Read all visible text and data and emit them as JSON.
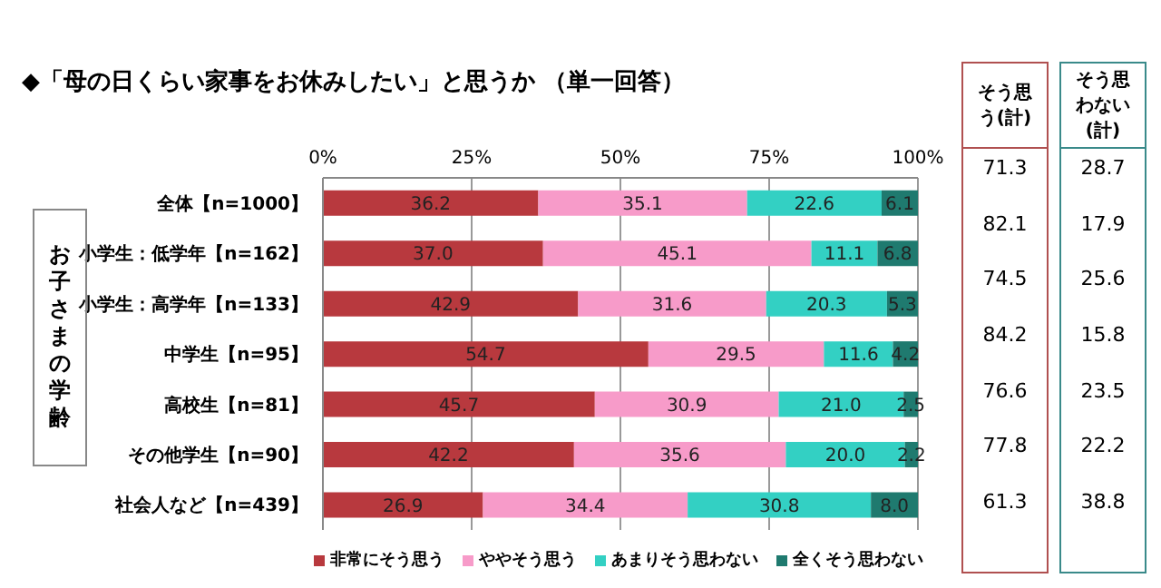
{
  "chart_data": {
    "type": "bar",
    "orientation": "horizontal",
    "stacked": true,
    "title": "◆「母の日くらい家事をお休みしたい」と思うか （単一回答）",
    "categories": [
      "全体【n=1000】",
      "小学生：低学年【n=162】",
      "小学生：高学年【n=133】",
      "中学生【n=95】",
      "高校生【n=81】",
      "その他学生【n=90】",
      "社会人など【n=439】"
    ],
    "series": [
      {
        "name": "非常にそう思う",
        "color": "#b8393e",
        "values": [
          36.2,
          37.0,
          42.9,
          54.7,
          45.7,
          42.2,
          26.9
        ],
        "value_labels": [
          "36.2",
          "37.0",
          "42.9",
          "54.7",
          "45.7",
          "42.2",
          "26.9"
        ]
      },
      {
        "name": "ややそう思う",
        "color": "#f79bc9",
        "values": [
          35.1,
          45.1,
          31.6,
          29.5,
          30.9,
          35.6,
          34.4
        ],
        "value_labels": [
          "35.1",
          "45.1",
          "31.6",
          "29.5",
          "30.9",
          "35.6",
          "34.4"
        ]
      },
      {
        "name": "あまりそう思わない",
        "color": "#33d0c3",
        "values": [
          22.6,
          11.1,
          20.3,
          11.6,
          21.0,
          20.0,
          30.8
        ],
        "value_labels": [
          "22.6",
          "11.1",
          "20.3",
          "11.6",
          "21.0",
          "20.0",
          "30.8"
        ]
      },
      {
        "name": "全くそう思わない",
        "color": "#1f7a6f",
        "values": [
          6.1,
          6.8,
          5.3,
          4.2,
          2.5,
          2.2,
          8.0
        ],
        "value_labels": [
          "6.1",
          "6.8",
          "5.3",
          "4.2",
          "2.5",
          "2.2",
          "8.0"
        ]
      }
    ],
    "xlim": [
      0,
      100
    ],
    "xticks": [
      {
        "value": 0,
        "label": "0%"
      },
      {
        "value": 25,
        "label": "25%"
      },
      {
        "value": 50,
        "label": "50%"
      },
      {
        "value": 75,
        "label": "75%"
      },
      {
        "value": 100,
        "label": "100%"
      }
    ],
    "grid": "x",
    "legend": "bottom",
    "annotations": [
      "お子さまの学齢",
      "そう思う(計)",
      "そう思わない(計)",
      "71.3",
      "28.7",
      "82.1",
      "17.9",
      "74.5",
      "25.6",
      "84.2",
      "15.8",
      "76.6",
      "23.5",
      "77.8",
      "22.2",
      "61.3",
      "38.8"
    ]
  }
}
